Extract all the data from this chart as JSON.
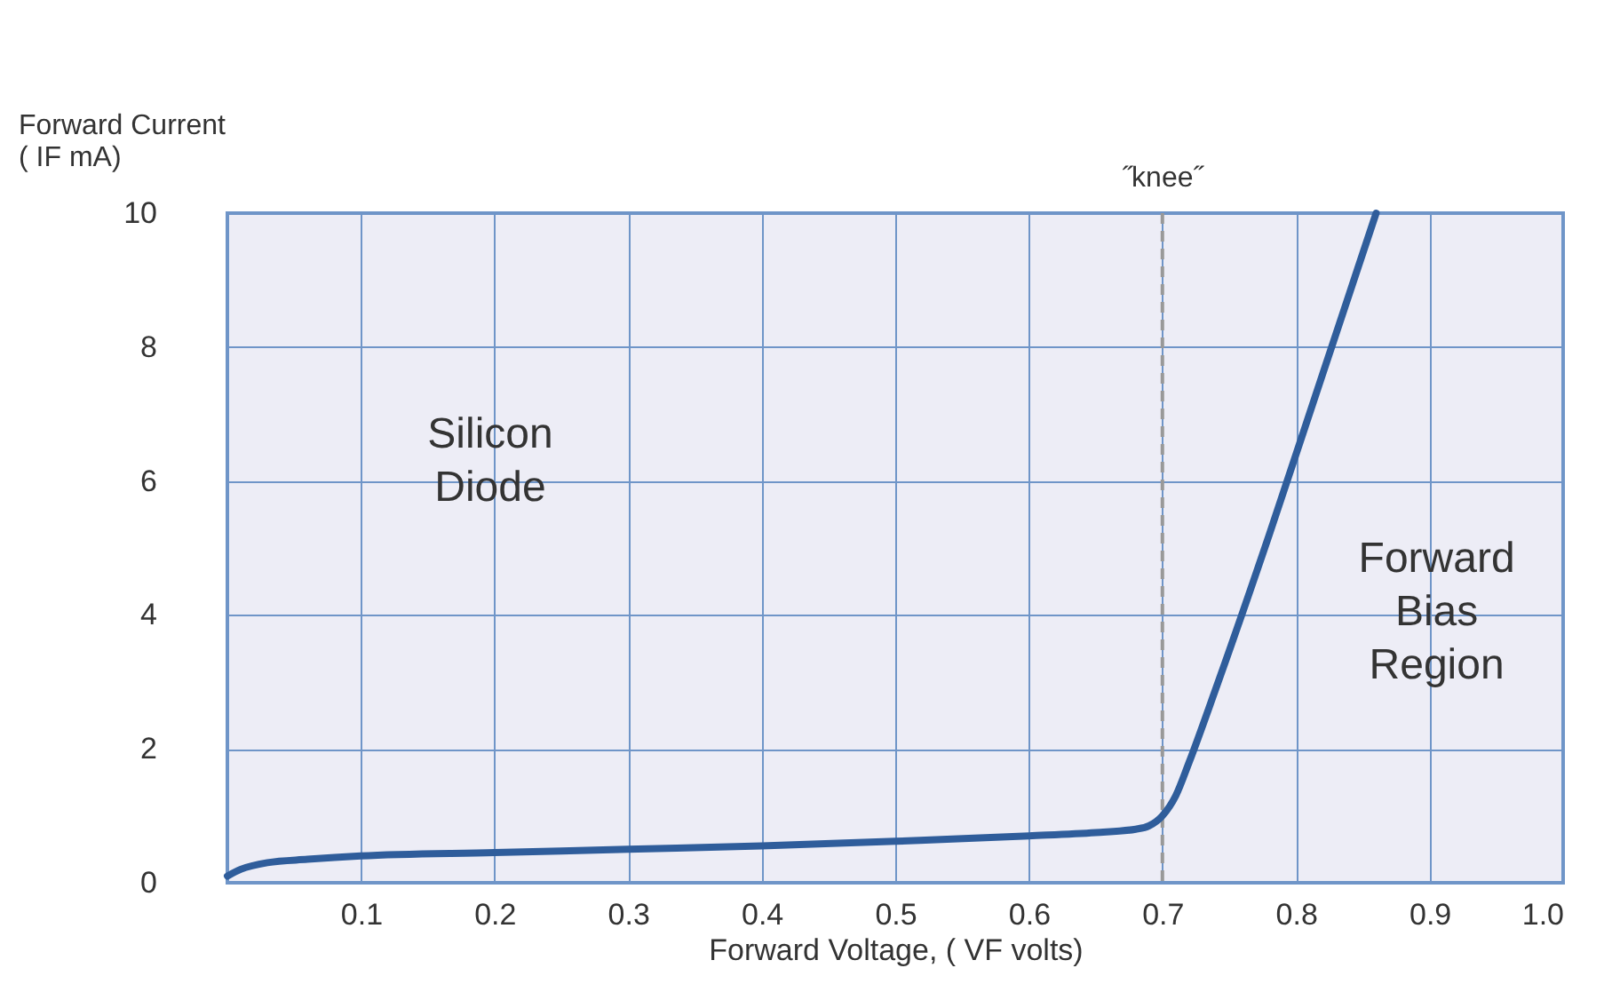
{
  "chart_data": {
    "type": "line",
    "xlabel": "Forward Voltage, ( VF volts)",
    "ylabel": "Forward Current\n( IF mA)",
    "x": [
      0,
      0.01,
      0.03,
      0.06,
      0.1,
      0.2,
      0.3,
      0.4,
      0.5,
      0.6,
      0.65,
      0.68,
      0.69,
      0.7,
      0.71,
      0.72,
      0.74,
      0.78,
      0.82,
      0.86
    ],
    "series": [
      {
        "color": "#2f5d9b",
        "values": [
          0.1,
          0.2,
          0.3,
          0.35,
          0.4,
          0.45,
          0.5,
          0.55,
          0.62,
          0.7,
          0.75,
          0.8,
          0.85,
          1.0,
          1.3,
          1.8,
          2.9,
          5.2,
          7.6,
          10
        ]
      }
    ],
    "xlim": [
      0,
      1.0
    ],
    "xticks": [
      0.1,
      0.2,
      0.3,
      0.4,
      0.5,
      0.6,
      0.7,
      0.8,
      0.9,
      {
        "value": 1.0,
        "label": "1.0"
      }
    ],
    "ylim": [
      0,
      10
    ],
    "yticks": [
      0,
      2,
      4,
      6,
      8,
      10
    ],
    "grid": true,
    "marker": "none",
    "line_style": "solid",
    "ref_lines": [
      {
        "axis": "x",
        "value": 0.7,
        "label": "˝knee˝",
        "color": "#999999",
        "line_style": "dashed"
      }
    ],
    "annotations": [
      "Silicon\nDiode",
      "Forward\nBias\nRegion"
    ]
  }
}
